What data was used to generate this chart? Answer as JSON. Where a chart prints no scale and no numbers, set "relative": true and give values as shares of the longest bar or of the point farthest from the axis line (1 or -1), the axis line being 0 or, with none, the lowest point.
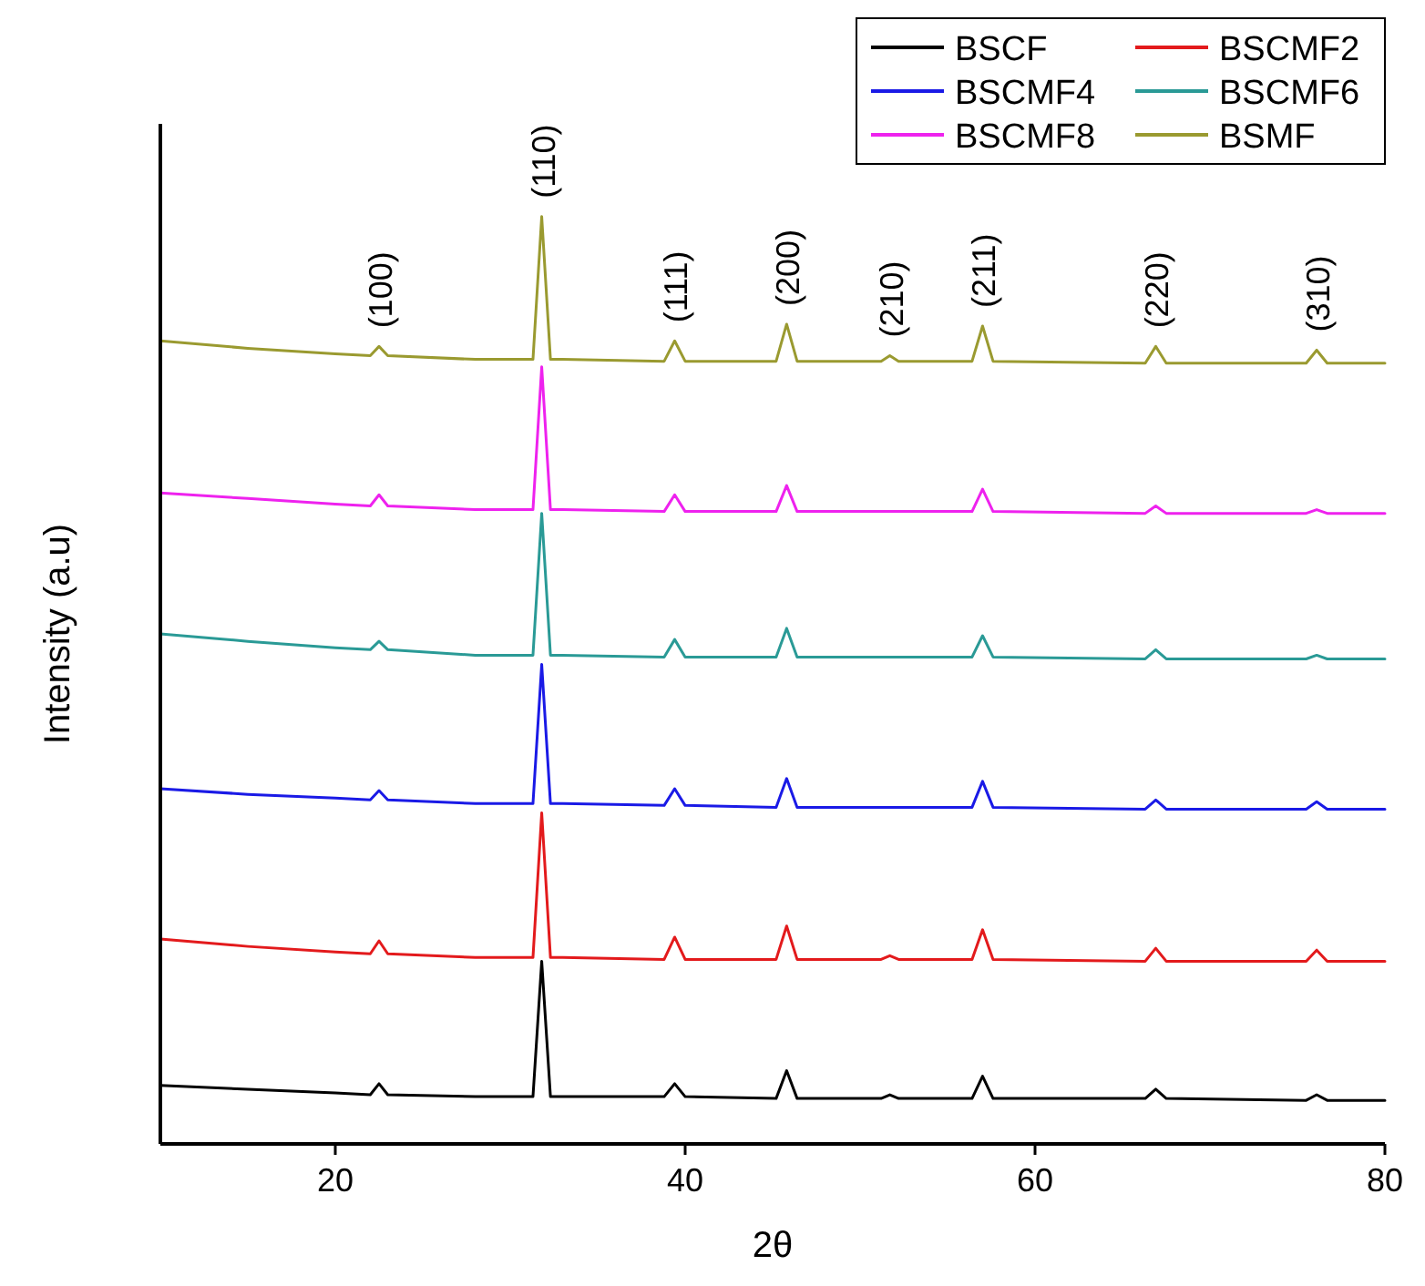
{
  "chart_data": {
    "type": "line",
    "relative": true,
    "xlabel": "2θ",
    "ylabel": "Intensity (a.u)",
    "xlim": [
      10,
      80
    ],
    "xticks": [
      20,
      40,
      60,
      80
    ],
    "legend": "top right",
    "grid": false,
    "marker": "none",
    "line_style": "solid",
    "x": [
      10,
      15,
      20,
      22,
      22.5,
      23,
      28,
      31.3,
      31.8,
      32.3,
      33,
      38.8,
      39.4,
      40,
      45.2,
      45.8,
      46.4,
      51.2,
      51.7,
      52.2,
      56.4,
      57,
      57.6,
      66.3,
      66.9,
      67.5,
      75.5,
      76.1,
      76.7,
      80
    ],
    "series": [
      {
        "name": "BSCF",
        "color": "#000000",
        "values": [
          0.063,
          0.059,
          0.055,
          0.053,
          0.065,
          0.053,
          0.051,
          0.051,
          0.197,
          0.051,
          0.051,
          0.051,
          0.065,
          0.051,
          0.049,
          0.079,
          0.049,
          0.049,
          0.053,
          0.049,
          0.049,
          0.073,
          0.049,
          0.049,
          0.059,
          0.049,
          0.047,
          0.053,
          0.047,
          0.047
        ]
      },
      {
        "name": "BSCMF2",
        "color": "#e31a1c",
        "values": [
          0.221,
          0.213,
          0.207,
          0.205,
          0.219,
          0.205,
          0.201,
          0.201,
          0.357,
          0.201,
          0.201,
          0.199,
          0.223,
          0.199,
          0.199,
          0.235,
          0.199,
          0.199,
          0.203,
          0.199,
          0.199,
          0.231,
          0.199,
          0.197,
          0.211,
          0.197,
          0.197,
          0.209,
          0.197,
          0.197
        ]
      },
      {
        "name": "BSCMF4",
        "color": "#1a1ae6",
        "values": [
          0.383,
          0.377,
          0.373,
          0.371,
          0.381,
          0.371,
          0.367,
          0.367,
          0.517,
          0.367,
          0.367,
          0.365,
          0.383,
          0.365,
          0.363,
          0.394,
          0.363,
          0.363,
          0.363,
          0.363,
          0.363,
          0.391,
          0.363,
          0.361,
          0.371,
          0.361,
          0.361,
          0.369,
          0.361,
          0.361
        ]
      },
      {
        "name": "BSCMF6",
        "color": "#2a9a96",
        "values": [
          0.55,
          0.542,
          0.535,
          0.533,
          0.542,
          0.533,
          0.527,
          0.527,
          0.68,
          0.527,
          0.527,
          0.525,
          0.544,
          0.525,
          0.525,
          0.556,
          0.525,
          0.525,
          0.525,
          0.525,
          0.525,
          0.548,
          0.525,
          0.523,
          0.533,
          0.523,
          0.523,
          0.527,
          0.523,
          0.523
        ]
      },
      {
        "name": "BSCMF8",
        "color": "#ee22ee",
        "values": [
          0.702,
          0.696,
          0.69,
          0.688,
          0.7,
          0.688,
          0.684,
          0.684,
          0.838,
          0.684,
          0.684,
          0.682,
          0.7,
          0.682,
          0.682,
          0.71,
          0.682,
          0.682,
          0.682,
          0.682,
          0.682,
          0.706,
          0.682,
          0.68,
          0.688,
          0.68,
          0.68,
          0.684,
          0.68,
          0.68
        ]
      },
      {
        "name": "BSMF",
        "color": "#9a9a30",
        "values": [
          0.866,
          0.858,
          0.852,
          0.85,
          0.86,
          0.85,
          0.846,
          0.846,
          1,
          0.846,
          0.846,
          0.844,
          0.866,
          0.844,
          0.844,
          0.884,
          0.844,
          0.844,
          0.85,
          0.844,
          0.844,
          0.882,
          0.844,
          0.842,
          0.86,
          0.842,
          0.842,
          0.856,
          0.842,
          0.842
        ]
      }
    ],
    "annotations": [
      {
        "text": "(100)",
        "x": 22.5,
        "y": 0.86
      },
      {
        "text": "(110)",
        "x": 31.8,
        "y": 1
      },
      {
        "text": "(111)",
        "x": 39.4,
        "y": 0.866
      },
      {
        "text": "(200)",
        "x": 45.8,
        "y": 0.884
      },
      {
        "text": "(210)",
        "x": 51.7,
        "y": 0.85
      },
      {
        "text": "(211)",
        "x": 57,
        "y": 0.882
      },
      {
        "text": "(220)",
        "x": 66.9,
        "y": 0.86
      },
      {
        "text": "(310)",
        "x": 76.1,
        "y": 0.856
      }
    ]
  }
}
